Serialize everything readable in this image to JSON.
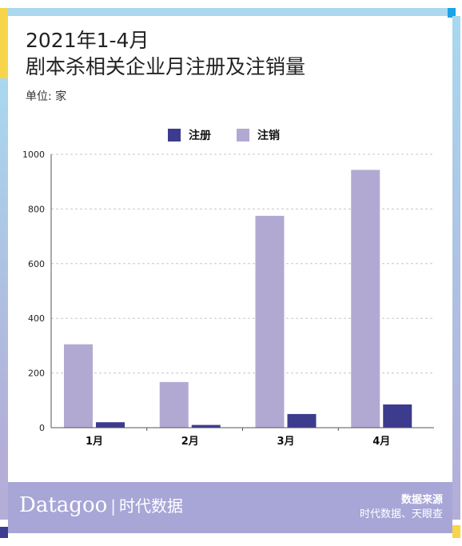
{
  "title_lines": [
    "2021年1-4月",
    "剧本杀相关企业月注册及注销量"
  ],
  "unit_label": "单位: 家",
  "colors": {
    "registered": "#3d3b8e",
    "cancelled": "#b2a9d3",
    "grid": "#c8c8c8",
    "axis": "#555555"
  },
  "chart_data": {
    "type": "bar",
    "categories": [
      "1月",
      "2月",
      "3月",
      "4月"
    ],
    "series": [
      {
        "name": "注册",
        "values": [
          20,
          10,
          50,
          85
        ]
      },
      {
        "name": "注销",
        "values": [
          305,
          167,
          775,
          943
        ]
      }
    ],
    "ylim": [
      0,
      1000
    ],
    "yticks": [
      0,
      200,
      400,
      600,
      800,
      1000
    ],
    "grid": true,
    "legend_position": "top-center"
  },
  "legend": [
    {
      "label": "注册",
      "color": "#3d3b8e"
    },
    {
      "label": "注销",
      "color": "#b2a9d3"
    }
  ],
  "footer": {
    "brand": "Datagoo",
    "brand_sep": "|",
    "brand_cn": "时代数据",
    "source_heading": "数据来源",
    "source_value": "时代数据、天眼查"
  }
}
